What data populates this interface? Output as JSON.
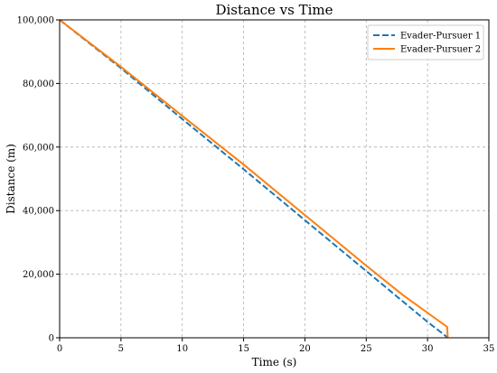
{
  "chart_data": {
    "type": "line",
    "title": "Distance vs Time",
    "xlabel": "Time (s)",
    "ylabel": "Distance (m)",
    "xlim": [
      0,
      35
    ],
    "ylim": [
      0,
      100000
    ],
    "xticks": [
      0,
      5,
      10,
      15,
      20,
      25,
      30,
      35
    ],
    "xtick_labels": [
      "0",
      "5",
      "10",
      "15",
      "20",
      "25",
      "30",
      "35"
    ],
    "yticks": [
      0,
      20000,
      40000,
      60000,
      80000,
      100000
    ],
    "ytick_labels": [
      "0",
      "20,000",
      "40,000",
      "60,000",
      "80,000",
      "100,000"
    ],
    "grid": true,
    "legend_position": "top-right",
    "series": [
      {
        "name": "Evader-Pursuer 1",
        "color": "#1f77b4",
        "style": "dashed",
        "x": [
          0,
          5,
          10,
          15,
          20,
          25,
          30,
          31.5,
          31.6
        ],
        "y": [
          100000,
          84800,
          68800,
          53000,
          37000,
          21000,
          5000,
          500,
          0
        ]
      },
      {
        "name": "Evader-Pursuer 2",
        "color": "#ff7f0e",
        "style": "solid",
        "x": [
          0,
          5,
          10,
          15,
          20,
          25,
          28,
          31.6,
          31.65
        ],
        "y": [
          100000,
          85200,
          69800,
          54500,
          38600,
          22700,
          13400,
          3400,
          0
        ]
      }
    ]
  }
}
